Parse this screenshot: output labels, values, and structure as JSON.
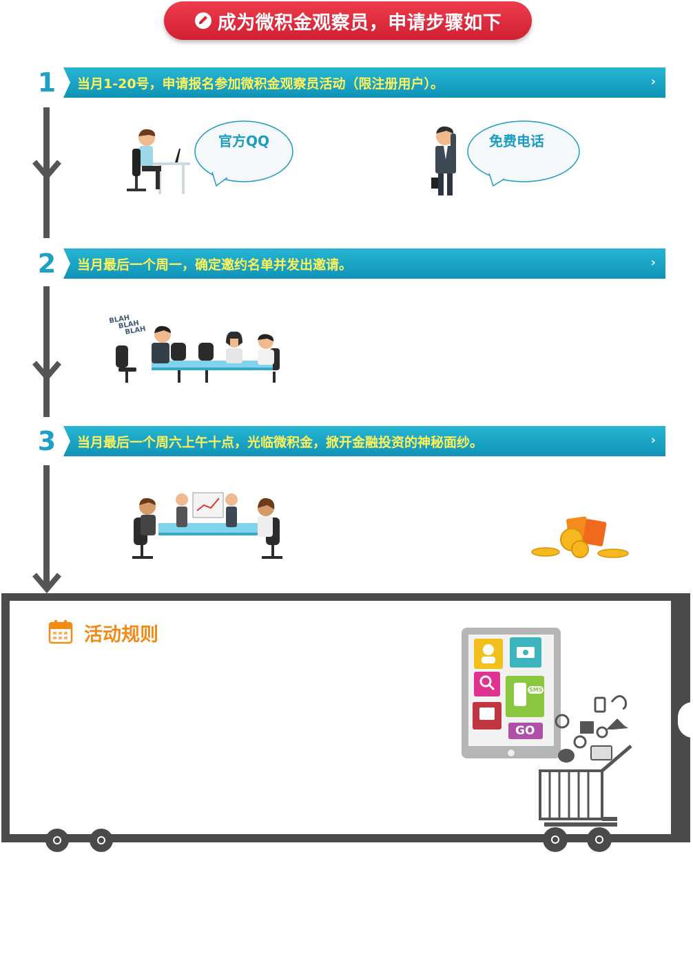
{
  "header": {
    "title": "成为微积金观察员，申请步骤如下",
    "icon": "pencil-icon"
  },
  "steps": [
    {
      "number": "1",
      "text": "当月1-20号，申请报名参加微积金观察员活动（限注册用户）。"
    },
    {
      "number": "2",
      "text": "当月最后一个周一，确定邀约名单并发出邀请。"
    },
    {
      "number": "3",
      "text": "当月最后一个周六上午十点，光临微积金，掀开金融投资的神秘面纱。"
    }
  ],
  "bubbles": {
    "qq": "官方QQ",
    "phone": "免费电话"
  },
  "illustration_text": {
    "blah": "BLAH"
  },
  "rules": {
    "title": "活动规则",
    "icon": "calendar-icon"
  },
  "tablet": {
    "sms_label": "SMS",
    "go_label": "GO"
  },
  "colors": {
    "accent_red": "#e02a3c",
    "step_blue": "#1a9fc2",
    "step_text_yellow": "#fff35a",
    "rules_orange": "#f28a16",
    "frame_gray": "#4a4a4a"
  }
}
